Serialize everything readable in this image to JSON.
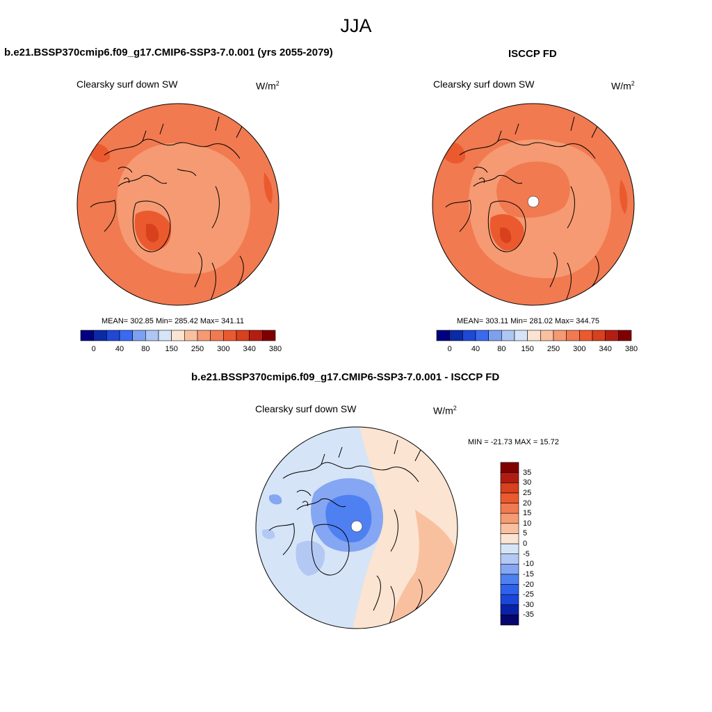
{
  "figure": {
    "title": "JJA"
  },
  "panels": [
    {
      "title": "b.e21.BSSP370cmip6.f09_g17.CMIP6-SSP3-7.0.001 (yrs 2055-2079)",
      "variable": "Clearsky surf down SW",
      "units_base": "W/m",
      "units_sup": "2",
      "stats": "MEAN= 302.85  Min= 285.42  Max= 341.11"
    },
    {
      "title": "ISCCP FD",
      "variable": "Clearsky surf down SW",
      "units_base": "W/m",
      "units_sup": "2",
      "stats": "MEAN= 303.11  Min= 281.02  Max= 344.75"
    },
    {
      "title": "b.e21.BSSP370cmip6.f09_g17.CMIP6-SSP3-7.0.001 - ISCCP FD",
      "variable": "Clearsky surf down SW",
      "units_base": "W/m",
      "units_sup": "2",
      "stats": "MIN = -21.73 MAX =  15.72"
    }
  ],
  "colorbars": {
    "absolute": {
      "colors": [
        "#000080",
        "#0a2aa6",
        "#1f48d6",
        "#3a6af0",
        "#7da0f0",
        "#adc6f4",
        "#d6e4f7",
        "#fbe4d2",
        "#f9c0a0",
        "#f59a72",
        "#f17a50",
        "#eb5a2e",
        "#d8401e",
        "#b41e12",
        "#800000"
      ],
      "tick_labels": [
        "0",
        "40",
        "80",
        "150",
        "250",
        "300",
        "340",
        "380"
      ]
    },
    "difference": {
      "colors": [
        "#06066e",
        "#0a22a8",
        "#1a46da",
        "#2f62ec",
        "#4e80f2",
        "#85a6f2",
        "#b3c9f4",
        "#d6e4f7",
        "#fbe4d2",
        "#f9c0a0",
        "#f59a72",
        "#f17a50",
        "#ea5a2e",
        "#d8401e",
        "#b01c12",
        "#800000"
      ],
      "tick_labels": [
        "35",
        "30",
        "25",
        "20",
        "15",
        "10",
        "5",
        "0",
        "-5",
        "-10",
        "-15",
        "-20",
        "-25",
        "-30",
        "-35"
      ]
    }
  },
  "chart_data": [
    {
      "type": "heatmap",
      "title": "Clearsky surf down SW",
      "units": "W/m2",
      "mean": 302.85,
      "min": 285.42,
      "max": 341.11,
      "levels": [
        0,
        40,
        80,
        150,
        250,
        300,
        340,
        380
      ]
    },
    {
      "type": "heatmap",
      "title": "Clearsky surf down SW",
      "units": "W/m2",
      "mean": 303.11,
      "min": 281.02,
      "max": 344.75,
      "levels": [
        0,
        40,
        80,
        150,
        250,
        300,
        340,
        380
      ]
    },
    {
      "type": "heatmap",
      "title": "Clearsky surf down SW",
      "units": "W/m2",
      "min": -21.73,
      "max": 15.72,
      "levels": [
        -35,
        -30,
        -25,
        -20,
        -15,
        -10,
        -5,
        0,
        5,
        10,
        15,
        20,
        25,
        30,
        35
      ]
    }
  ]
}
